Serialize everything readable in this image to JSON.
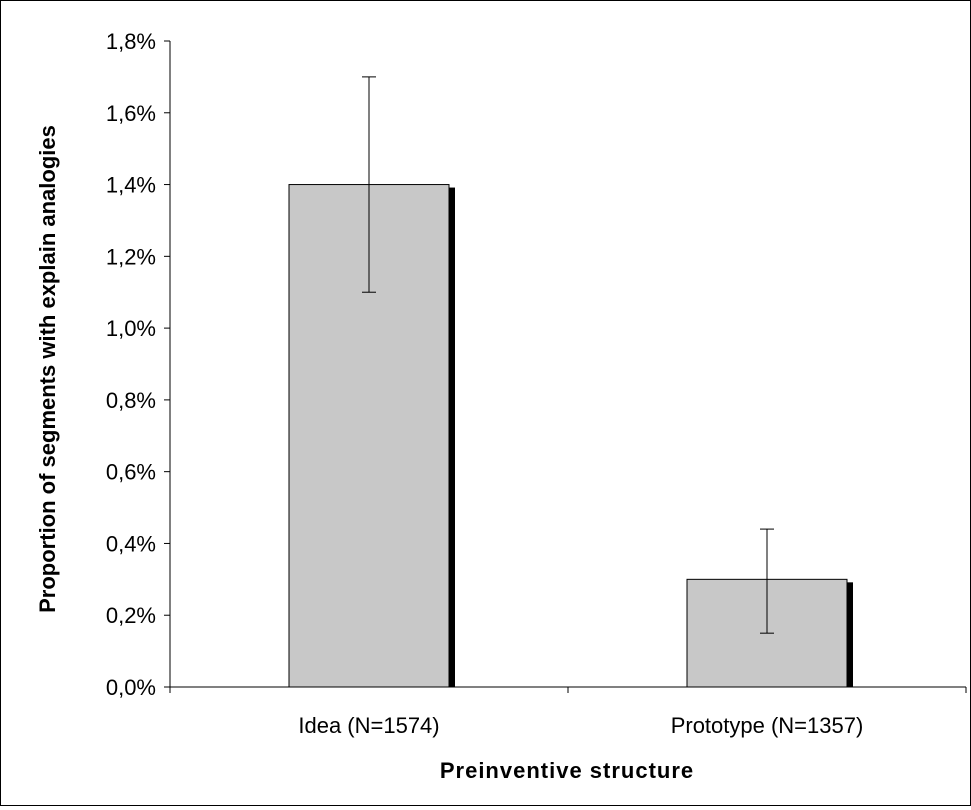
{
  "chart_data": {
    "type": "bar",
    "categories": [
      "Idea (N=1574)",
      "Prototype (N=1357)"
    ],
    "values": [
      1.4,
      0.3
    ],
    "error_bars": [
      {
        "low": 1.1,
        "high": 1.7
      },
      {
        "low": 0.15,
        "high": 0.44
      }
    ],
    "xlabel": "Preinventive structure",
    "ylabel": "Proportion of segments with explain analogies",
    "ylim": [
      0,
      1.8
    ],
    "yticks": [
      0,
      0.2,
      0.4,
      0.6,
      0.8,
      1.0,
      1.2,
      1.4,
      1.6,
      1.8
    ],
    "ytick_labels": [
      "0,0%",
      "0,2%",
      "0,4%",
      "0,6%",
      "0,8%",
      "1,0%",
      "1,2%",
      "1,4%",
      "1,6%",
      "1,8%"
    ],
    "grid": false,
    "legend": "none",
    "colors": {
      "bar_fill": "#c8c8c8",
      "bar_stroke": "#000000",
      "bar_shadow": "#000000",
      "axis": "#000000"
    }
  }
}
